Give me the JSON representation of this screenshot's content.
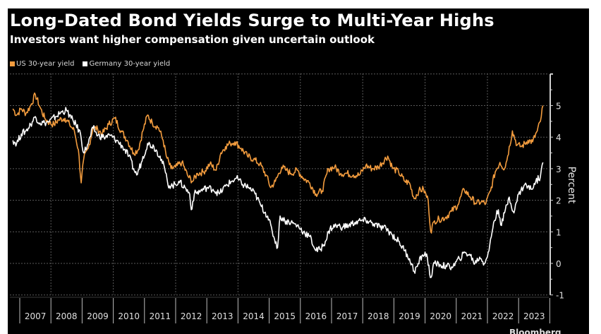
{
  "chart_data": {
    "type": "line",
    "title": "Long-Dated Bond Yields Surge to Multi-Year Highs",
    "subtitle": "Investors want higher compensation given uncertain outlook",
    "xlabel": "",
    "ylabel": "Percent",
    "xlim": [
      2006.75,
      2024.1
    ],
    "ylim": [
      -1,
      6
    ],
    "y_ticks": [
      -1,
      0,
      1,
      2,
      3,
      4,
      5
    ],
    "x_tick_labels": [
      "2007",
      "2008",
      "2009",
      "2010",
      "2011",
      "2012",
      "2013",
      "2014",
      "2015",
      "2016",
      "2017",
      "2018",
      "2019",
      "2020",
      "2021",
      "2022",
      "2023"
    ],
    "grid": true,
    "legend_position": "top-left",
    "y_axis_side": "right",
    "series": [
      {
        "name": "US 30-year yield",
        "color": "#F39C3E",
        "x": [
          2006.78,
          2006.9,
          2007.05,
          2007.2,
          2007.35,
          2007.5,
          2007.65,
          2007.8,
          2007.95,
          2008.1,
          2008.25,
          2008.45,
          2008.6,
          2008.75,
          2008.88,
          2008.97,
          2009.05,
          2009.2,
          2009.35,
          2009.5,
          2009.65,
          2009.85,
          2010.05,
          2010.25,
          2010.45,
          2010.65,
          2010.8,
          2010.95,
          2011.1,
          2011.25,
          2011.45,
          2011.6,
          2011.7,
          2011.85,
          2012.0,
          2012.2,
          2012.4,
          2012.55,
          2012.7,
          2012.9,
          2013.1,
          2013.3,
          2013.45,
          2013.6,
          2013.75,
          2013.9,
          2014.1,
          2014.3,
          2014.5,
          2014.7,
          2014.9,
          2015.05,
          2015.2,
          2015.4,
          2015.55,
          2015.7,
          2015.9,
          2016.1,
          2016.3,
          2016.5,
          2016.7,
          2016.9,
          2017.1,
          2017.3,
          2017.5,
          2017.7,
          2017.9,
          2018.1,
          2018.3,
          2018.5,
          2018.8,
          2018.97,
          2019.15,
          2019.35,
          2019.5,
          2019.65,
          2019.8,
          2019.95,
          2020.1,
          2020.18,
          2020.3,
          2020.45,
          2020.65,
          2020.85,
          2021.05,
          2021.25,
          2021.45,
          2021.65,
          2021.8,
          2021.95,
          2022.1,
          2022.25,
          2022.4,
          2022.55,
          2022.65,
          2022.8,
          2022.95,
          2023.1,
          2023.3,
          2023.45,
          2023.6,
          2023.7,
          2023.78
        ],
        "values": [
          4.9,
          4.7,
          4.9,
          4.75,
          5.0,
          5.35,
          4.95,
          4.6,
          4.45,
          4.4,
          4.55,
          4.6,
          4.4,
          4.2,
          3.6,
          2.55,
          3.3,
          3.65,
          4.3,
          4.25,
          4.1,
          4.4,
          4.6,
          4.2,
          3.9,
          3.5,
          3.6,
          4.2,
          4.7,
          4.45,
          4.3,
          3.9,
          3.4,
          3.0,
          3.05,
          3.2,
          2.75,
          2.6,
          2.85,
          2.9,
          3.15,
          2.95,
          3.5,
          3.7,
          3.8,
          3.85,
          3.65,
          3.4,
          3.3,
          3.15,
          2.8,
          2.4,
          2.6,
          3.05,
          2.95,
          2.85,
          2.95,
          2.7,
          2.55,
          2.2,
          2.3,
          3.0,
          3.05,
          2.85,
          2.85,
          2.8,
          2.8,
          3.1,
          3.0,
          3.05,
          3.4,
          3.0,
          2.9,
          2.6,
          2.55,
          2.05,
          2.3,
          2.35,
          2.0,
          1.0,
          1.35,
          1.4,
          1.45,
          1.65,
          1.85,
          2.35,
          2.1,
          1.9,
          1.95,
          1.9,
          2.3,
          2.9,
          3.2,
          3.0,
          3.4,
          4.2,
          3.75,
          3.7,
          3.9,
          3.85,
          4.2,
          4.5,
          5.0
        ]
      },
      {
        "name": "Germany 30-year yield",
        "color": "#FFFFFF",
        "x": [
          2006.78,
          2006.9,
          2007.05,
          2007.2,
          2007.35,
          2007.5,
          2007.65,
          2007.8,
          2007.95,
          2008.15,
          2008.35,
          2008.5,
          2008.65,
          2008.8,
          2008.95,
          2009.05,
          2009.2,
          2009.35,
          2009.5,
          2009.7,
          2009.9,
          2010.1,
          2010.3,
          2010.5,
          2010.65,
          2010.75,
          2010.9,
          2011.1,
          2011.3,
          2011.5,
          2011.65,
          2011.75,
          2011.9,
          2012.1,
          2012.3,
          2012.45,
          2012.5,
          2012.6,
          2012.8,
          2013.0,
          2013.2,
          2013.4,
          2013.6,
          2013.8,
          2013.95,
          2014.15,
          2014.35,
          2014.55,
          2014.75,
          2014.95,
          2015.1,
          2015.27,
          2015.35,
          2015.5,
          2015.7,
          2015.9,
          2016.1,
          2016.3,
          2016.5,
          2016.65,
          2016.8,
          2016.95,
          2017.15,
          2017.35,
          2017.55,
          2017.75,
          2017.95,
          2018.15,
          2018.35,
          2018.55,
          2018.75,
          2018.95,
          2019.15,
          2019.35,
          2019.5,
          2019.65,
          2019.75,
          2019.9,
          2020.05,
          2020.17,
          2020.3,
          2020.5,
          2020.7,
          2020.9,
          2021.1,
          2021.3,
          2021.45,
          2021.6,
          2021.75,
          2021.9,
          2022.05,
          2022.2,
          2022.35,
          2022.45,
          2022.55,
          2022.7,
          2022.85,
          2023.0,
          2023.2,
          2023.4,
          2023.55,
          2023.7,
          2023.78
        ],
        "values": [
          3.9,
          3.8,
          4.1,
          4.2,
          4.4,
          4.65,
          4.45,
          4.45,
          4.5,
          4.65,
          4.8,
          4.85,
          4.6,
          4.4,
          4.1,
          3.5,
          3.8,
          4.3,
          4.05,
          4.0,
          4.05,
          3.9,
          3.7,
          3.4,
          3.0,
          2.8,
          3.2,
          3.8,
          3.7,
          3.4,
          3.0,
          2.5,
          2.45,
          2.6,
          2.4,
          2.2,
          1.7,
          2.2,
          2.3,
          2.4,
          2.35,
          2.2,
          2.45,
          2.6,
          2.7,
          2.5,
          2.4,
          2.2,
          1.8,
          1.5,
          1.0,
          0.5,
          1.5,
          1.35,
          1.3,
          1.2,
          1.0,
          0.85,
          0.4,
          0.45,
          0.7,
          1.1,
          1.2,
          1.15,
          1.2,
          1.3,
          1.35,
          1.35,
          1.25,
          1.15,
          1.1,
          0.9,
          0.7,
          0.4,
          0.15,
          -0.25,
          -0.1,
          0.25,
          0.3,
          -0.45,
          0.0,
          -0.05,
          -0.1,
          -0.1,
          0.15,
          0.35,
          0.25,
          0.0,
          0.2,
          0.0,
          0.4,
          1.3,
          1.7,
          1.2,
          1.6,
          2.1,
          1.6,
          2.2,
          2.5,
          2.35,
          2.6,
          2.75,
          3.2
        ]
      }
    ]
  },
  "watermark": "Bloomberg"
}
